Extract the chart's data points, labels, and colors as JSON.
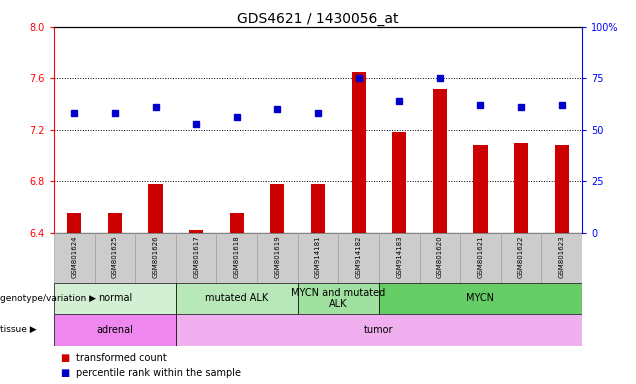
{
  "title": "GDS4621 / 1430056_at",
  "samples": [
    "GSM801624",
    "GSM801625",
    "GSM801626",
    "GSM801617",
    "GSM801618",
    "GSM801619",
    "GSM914181",
    "GSM914182",
    "GSM914183",
    "GSM801620",
    "GSM801621",
    "GSM801622",
    "GSM801623"
  ],
  "red_values": [
    6.55,
    6.55,
    6.78,
    6.42,
    6.55,
    6.78,
    6.78,
    7.65,
    7.18,
    7.52,
    7.08,
    7.1,
    7.08
  ],
  "blue_values": [
    58,
    58,
    61,
    53,
    56,
    60,
    58,
    75,
    64,
    75,
    62,
    61,
    62
  ],
  "ylim_left": [
    6.4,
    8.0
  ],
  "ylim_right": [
    0,
    100
  ],
  "yticks_left": [
    6.4,
    6.8,
    7.2,
    7.6,
    8.0
  ],
  "yticks_right": [
    0,
    25,
    50,
    75,
    100
  ],
  "hlines": [
    6.8,
    7.2,
    7.6
  ],
  "bar_color": "#cc0000",
  "dot_color": "#0000cc",
  "genotype_groups": [
    {
      "label": "normal",
      "start": 0,
      "end": 3,
      "color": "#d4f0d4"
    },
    {
      "label": "mutated ALK",
      "start": 3,
      "end": 6,
      "color": "#b8e8b8"
    },
    {
      "label": "MYCN and mutated\nALK",
      "start": 6,
      "end": 8,
      "color": "#a0e0a0"
    },
    {
      "label": "MYCN",
      "start": 8,
      "end": 13,
      "color": "#66cc66"
    }
  ],
  "tissue_groups": [
    {
      "label": "adrenal",
      "start": 0,
      "end": 3,
      "color": "#ee88ee"
    },
    {
      "label": "tumor",
      "start": 3,
      "end": 13,
      "color": "#f0b0f0"
    }
  ],
  "legend_items": [
    {
      "label": "transformed count",
      "color": "#cc0000"
    },
    {
      "label": "percentile rank within the sample",
      "color": "#0000cc"
    }
  ],
  "title_fontsize": 10,
  "tick_fontsize": 7,
  "sample_fontsize": 5,
  "row_fontsize": 7,
  "legend_fontsize": 7
}
